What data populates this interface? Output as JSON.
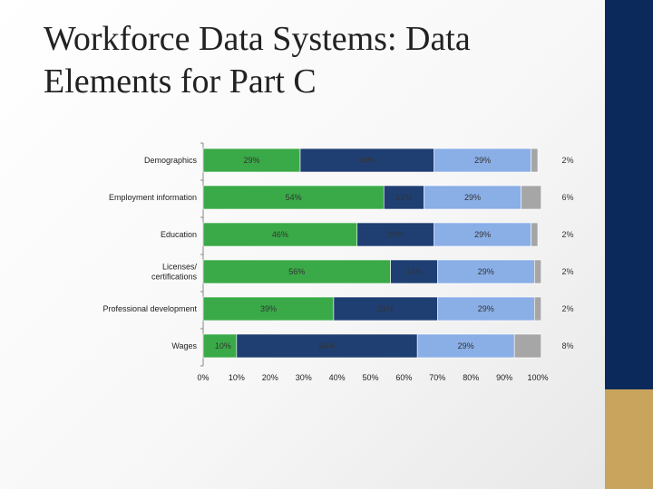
{
  "slide": {
    "title": "Workforce Data Systems: Data\nElements for Part C"
  },
  "colors": {
    "sidebar": "#0b2a5b",
    "accent": "#c9a45c",
    "series": [
      "#3aaa48",
      "#1f3f73",
      "#8aaee6",
      "#a6a6a6"
    ]
  },
  "chart_data": {
    "type": "bar",
    "orientation": "horizontal",
    "stacked": true,
    "categories": [
      "Demographics",
      "Employment information",
      "Education",
      "Licenses/\ncertifications",
      "Professional development",
      "Wages"
    ],
    "series": [
      {
        "values": [
          29,
          54,
          46,
          56,
          39,
          10
        ],
        "labels": [
          "29%",
          "54%",
          "46%",
          "56%",
          "39%",
          "10%"
        ]
      },
      {
        "values": [
          40,
          12,
          23,
          14,
          31,
          54
        ],
        "labels": [
          "40%",
          "12%",
          "23%",
          "14%",
          "31%",
          "54%"
        ]
      },
      {
        "values": [
          29,
          29,
          29,
          29,
          29,
          29
        ],
        "labels": [
          "29%",
          "29%",
          "29%",
          "29%",
          "29%",
          "29%"
        ]
      },
      {
        "values": [
          2,
          6,
          2,
          2,
          2,
          8
        ],
        "labels": [
          "2%",
          "6%",
          "2%",
          "2%",
          "2%",
          "8%"
        ]
      }
    ],
    "xlim": [
      0,
      100
    ],
    "xticks": [
      "0%",
      "10%",
      "20%",
      "30%",
      "40%",
      "50%",
      "60%",
      "70%",
      "80%",
      "90%",
      "100%"
    ],
    "title": "",
    "xlabel": "",
    "ylabel": "",
    "legend": "none",
    "grid": false
  }
}
